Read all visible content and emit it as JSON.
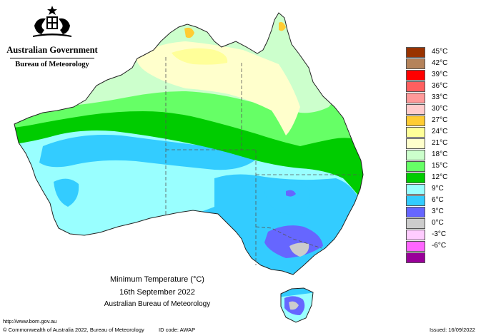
{
  "header": {
    "government": "Australian Government",
    "bureau": "Bureau of Meteorology"
  },
  "map": {
    "title": "Minimum Temperature (°C)",
    "date": "16th September 2022",
    "source": "Australian Bureau of Meteorology"
  },
  "legend": {
    "items": [
      {
        "label": "45°C",
        "color": "#993300"
      },
      {
        "label": "42°C",
        "color": "#b5835a"
      },
      {
        "label": "39°C",
        "color": "#ff0000"
      },
      {
        "label": "36°C",
        "color": "#ff5f5f"
      },
      {
        "label": "33°C",
        "color": "#ff9999"
      },
      {
        "label": "30°C",
        "color": "#ffcccc"
      },
      {
        "label": "27°C",
        "color": "#ffcc33"
      },
      {
        "label": "24°C",
        "color": "#ffff99"
      },
      {
        "label": "21°C",
        "color": "#ffffcc"
      },
      {
        "label": "18°C",
        "color": "#ccffcc"
      },
      {
        "label": "15°C",
        "color": "#66ff66"
      },
      {
        "label": "12°C",
        "color": "#00cc00"
      },
      {
        "label": "9°C",
        "color": "#99ffff"
      },
      {
        "label": "6°C",
        "color": "#33ccff"
      },
      {
        "label": "3°C",
        "color": "#6666ff"
      },
      {
        "label": "0°C",
        "color": "#cccccc"
      },
      {
        "label": "-3°C",
        "color": "#ffccff"
      },
      {
        "label": "-6°C",
        "color": "#ff66ff"
      },
      {
        "label": "",
        "color": "#990099"
      }
    ]
  },
  "footer": {
    "url": "http://www.bom.gov.au",
    "copyright": "© Commonwealth of Australia 2022, Bureau of Meteorology",
    "id_code": "ID code: AWAP",
    "issued": "Issued: 16/09/2022"
  }
}
